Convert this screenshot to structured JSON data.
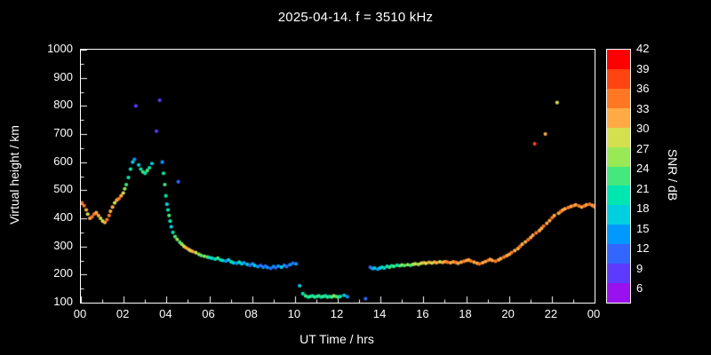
{
  "title": "2025-04-14. f = 3510 kHz",
  "chart_data": {
    "type": "scatter",
    "title": "2025-04-14. f = 3510 kHz",
    "xlabel": "UT Time / hrs",
    "ylabel": "Virtual height / km",
    "xlim": [
      0,
      24
    ],
    "ylim": [
      100,
      1000
    ],
    "grid": false,
    "background_color": "#000000",
    "axis_color": "#ffffff",
    "x_ticks": {
      "values": [
        0,
        2,
        4,
        6,
        8,
        10,
        12,
        14,
        16,
        18,
        20,
        22,
        24
      ],
      "labels": [
        "00",
        "02",
        "04",
        "06",
        "08",
        "10",
        "12",
        "14",
        "16",
        "18",
        "20",
        "22",
        "00"
      ]
    },
    "y_ticks": [
      100,
      200,
      300,
      400,
      500,
      600,
      700,
      800,
      900,
      1000
    ],
    "colorbar": {
      "label": "SNR / dB",
      "ticks": [
        42,
        39,
        36,
        33,
        30,
        27,
        24,
        21,
        18,
        15,
        12,
        9,
        6
      ],
      "scale_min": 4,
      "scale_max": 42,
      "colors_low_to_high": [
        "#9911ee",
        "#5c3bff",
        "#3366ff",
        "#0099ff",
        "#00cfe0",
        "#00e6b0",
        "#44e87c",
        "#99e855",
        "#d4e04d",
        "#ffaa44",
        "#ff7722",
        "#ff4411",
        "#ff0000"
      ]
    },
    "point_format": [
      "ut_hours",
      "virtual_height_km",
      "snr_db"
    ],
    "points": [
      [
        0.05,
        455,
        36
      ],
      [
        0.15,
        445,
        36
      ],
      [
        0.25,
        430,
        33
      ],
      [
        0.32,
        415,
        30
      ],
      [
        0.42,
        400,
        33
      ],
      [
        0.52,
        405,
        36
      ],
      [
        0.62,
        415,
        36
      ],
      [
        0.72,
        420,
        33
      ],
      [
        0.82,
        410,
        33
      ],
      [
        0.92,
        400,
        30
      ],
      [
        1.02,
        390,
        30
      ],
      [
        1.12,
        385,
        33
      ],
      [
        1.22,
        395,
        36
      ],
      [
        1.32,
        410,
        36
      ],
      [
        1.38,
        425,
        33
      ],
      [
        1.48,
        440,
        33
      ],
      [
        1.58,
        455,
        30
      ],
      [
        1.68,
        465,
        33
      ],
      [
        1.78,
        470,
        36
      ],
      [
        1.88,
        480,
        33
      ],
      [
        1.98,
        490,
        30
      ],
      [
        2.05,
        505,
        27
      ],
      [
        2.12,
        520,
        24
      ],
      [
        2.22,
        545,
        21
      ],
      [
        2.32,
        575,
        21
      ],
      [
        2.42,
        600,
        18
      ],
      [
        2.5,
        610,
        15
      ],
      [
        2.57,
        800,
        9
      ],
      [
        2.7,
        590,
        18
      ],
      [
        2.8,
        575,
        21
      ],
      [
        2.9,
        565,
        24
      ],
      [
        3.0,
        560,
        21
      ],
      [
        3.1,
        570,
        24
      ],
      [
        3.2,
        580,
        21
      ],
      [
        3.32,
        595,
        18
      ],
      [
        3.53,
        710,
        9
      ],
      [
        3.68,
        820,
        9
      ],
      [
        3.8,
        600,
        15
      ],
      [
        3.86,
        560,
        21
      ],
      [
        3.92,
        520,
        24
      ],
      [
        3.97,
        480,
        21
      ],
      [
        4.02,
        450,
        18
      ],
      [
        4.07,
        430,
        21
      ],
      [
        4.12,
        410,
        24
      ],
      [
        4.17,
        390,
        21
      ],
      [
        4.22,
        370,
        18
      ],
      [
        4.3,
        350,
        21
      ],
      [
        4.4,
        335,
        24
      ],
      [
        4.5,
        325,
        27
      ],
      [
        4.55,
        530,
        12
      ],
      [
        4.62,
        315,
        24
      ],
      [
        4.72,
        308,
        27
      ],
      [
        4.82,
        300,
        30
      ],
      [
        4.92,
        295,
        33
      ],
      [
        5.02,
        290,
        33
      ],
      [
        5.12,
        285,
        30
      ],
      [
        5.22,
        282,
        33
      ],
      [
        5.37,
        278,
        30
      ],
      [
        5.52,
        272,
        27
      ],
      [
        5.62,
        268,
        24
      ],
      [
        5.77,
        265,
        27
      ],
      [
        5.92,
        262,
        24
      ],
      [
        6.02,
        260,
        21
      ],
      [
        6.12,
        258,
        18
      ],
      [
        6.27,
        255,
        21
      ],
      [
        6.4,
        258,
        24
      ],
      [
        6.52,
        252,
        18
      ],
      [
        6.62,
        250,
        21
      ],
      [
        6.77,
        248,
        15
      ],
      [
        6.9,
        252,
        18
      ],
      [
        7.02,
        245,
        21
      ],
      [
        7.12,
        242,
        18
      ],
      [
        7.27,
        240,
        15
      ],
      [
        7.4,
        244,
        21
      ],
      [
        7.52,
        238,
        18
      ],
      [
        7.62,
        242,
        15
      ],
      [
        7.77,
        236,
        18
      ],
      [
        7.9,
        233,
        12
      ],
      [
        8.02,
        238,
        15
      ],
      [
        8.12,
        232,
        18
      ],
      [
        8.27,
        228,
        15
      ],
      [
        8.4,
        232,
        12
      ],
      [
        8.52,
        226,
        15
      ],
      [
        8.62,
        230,
        12
      ],
      [
        8.72,
        225,
        15
      ],
      [
        8.87,
        222,
        12
      ],
      [
        9.0,
        228,
        15
      ],
      [
        9.1,
        224,
        12
      ],
      [
        9.22,
        230,
        15
      ],
      [
        9.37,
        226,
        18
      ],
      [
        9.5,
        232,
        15
      ],
      [
        9.62,
        228,
        12
      ],
      [
        9.77,
        235,
        15
      ],
      [
        9.9,
        240,
        12
      ],
      [
        10.05,
        238,
        15
      ],
      [
        10.22,
        160,
        18
      ],
      [
        10.37,
        132,
        21
      ],
      [
        10.5,
        124,
        24
      ],
      [
        10.62,
        120,
        21
      ],
      [
        10.72,
        122,
        24
      ],
      [
        10.82,
        124,
        21
      ],
      [
        10.92,
        120,
        24
      ],
      [
        11.02,
        122,
        21
      ],
      [
        11.12,
        124,
        24
      ],
      [
        11.22,
        120,
        21
      ],
      [
        11.32,
        122,
        24
      ],
      [
        11.42,
        124,
        21
      ],
      [
        11.52,
        120,
        24
      ],
      [
        11.62,
        122,
        21
      ],
      [
        11.72,
        120,
        24
      ],
      [
        11.82,
        124,
        27
      ],
      [
        11.92,
        122,
        24
      ],
      [
        12.02,
        120,
        24
      ],
      [
        12.12,
        122,
        21
      ],
      [
        12.3,
        126,
        18
      ],
      [
        12.45,
        121,
        15
      ],
      [
        13.3,
        114,
        12
      ],
      [
        13.52,
        226,
        12
      ],
      [
        13.62,
        221,
        15
      ],
      [
        13.72,
        223,
        18
      ],
      [
        13.87,
        219,
        15
      ],
      [
        13.97,
        223,
        18
      ],
      [
        14.07,
        226,
        21
      ],
      [
        14.17,
        223,
        18
      ],
      [
        14.3,
        229,
        21
      ],
      [
        14.42,
        226,
        24
      ],
      [
        14.52,
        231,
        21
      ],
      [
        14.62,
        229,
        24
      ],
      [
        14.77,
        233,
        21
      ],
      [
        14.9,
        231,
        24
      ],
      [
        15.0,
        234,
        27
      ],
      [
        15.12,
        232,
        24
      ],
      [
        15.27,
        235,
        27
      ],
      [
        15.4,
        233,
        24
      ],
      [
        15.52,
        236,
        27
      ],
      [
        15.62,
        238,
        30
      ],
      [
        15.77,
        236,
        27
      ],
      [
        15.9,
        240,
        30
      ],
      [
        16.02,
        242,
        33
      ],
      [
        16.12,
        240,
        30
      ],
      [
        16.27,
        243,
        33
      ],
      [
        16.4,
        241,
        30
      ],
      [
        16.52,
        244,
        33
      ],
      [
        16.62,
        242,
        33
      ],
      [
        16.77,
        245,
        30
      ],
      [
        16.9,
        243,
        33
      ],
      [
        17.02,
        246,
        33
      ],
      [
        17.12,
        244,
        36
      ],
      [
        17.27,
        242,
        33
      ],
      [
        17.4,
        245,
        33
      ],
      [
        17.52,
        243,
        36
      ],
      [
        17.62,
        240,
        33
      ],
      [
        17.77,
        244,
        33
      ],
      [
        17.9,
        247,
        36
      ],
      [
        18.02,
        250,
        33
      ],
      [
        18.12,
        252,
        33
      ],
      [
        18.22,
        248,
        36
      ],
      [
        18.37,
        244,
        33
      ],
      [
        18.52,
        240,
        33
      ],
      [
        18.62,
        238,
        36
      ],
      [
        18.77,
        242,
        33
      ],
      [
        18.9,
        246,
        33
      ],
      [
        19.02,
        250,
        36
      ],
      [
        19.12,
        254,
        33
      ],
      [
        19.22,
        250,
        33
      ],
      [
        19.37,
        247,
        36
      ],
      [
        19.52,
        252,
        33
      ],
      [
        19.62,
        257,
        33
      ],
      [
        19.77,
        262,
        36
      ],
      [
        19.9,
        267,
        33
      ],
      [
        20.02,
        272,
        33
      ],
      [
        20.12,
        278,
        36
      ],
      [
        20.27,
        285,
        33
      ],
      [
        20.42,
        292,
        33
      ],
      [
        20.52,
        300,
        36
      ],
      [
        20.62,
        308,
        33
      ],
      [
        20.77,
        316,
        33
      ],
      [
        20.9,
        324,
        36
      ],
      [
        21.02,
        332,
        33
      ],
      [
        21.12,
        340,
        33
      ],
      [
        21.2,
        665,
        39
      ],
      [
        21.27,
        348,
        36
      ],
      [
        21.42,
        356,
        33
      ],
      [
        21.52,
        364,
        33
      ],
      [
        21.62,
        372,
        36
      ],
      [
        21.7,
        700,
        33
      ],
      [
        21.77,
        382,
        33
      ],
      [
        21.9,
        392,
        33
      ],
      [
        22.02,
        402,
        36
      ],
      [
        22.12,
        410,
        33
      ],
      [
        22.25,
        812,
        30
      ],
      [
        22.32,
        418,
        33
      ],
      [
        22.42,
        424,
        36
      ],
      [
        22.52,
        430,
        33
      ],
      [
        22.62,
        434,
        33
      ],
      [
        22.77,
        438,
        36
      ],
      [
        22.9,
        442,
        33
      ],
      [
        23.02,
        445,
        36
      ],
      [
        23.12,
        448,
        33
      ],
      [
        23.27,
        444,
        36
      ],
      [
        23.4,
        440,
        33
      ],
      [
        23.52,
        444,
        36
      ],
      [
        23.62,
        448,
        33
      ],
      [
        23.77,
        450,
        36
      ],
      [
        23.9,
        446,
        33
      ],
      [
        23.97,
        442,
        36
      ]
    ]
  }
}
